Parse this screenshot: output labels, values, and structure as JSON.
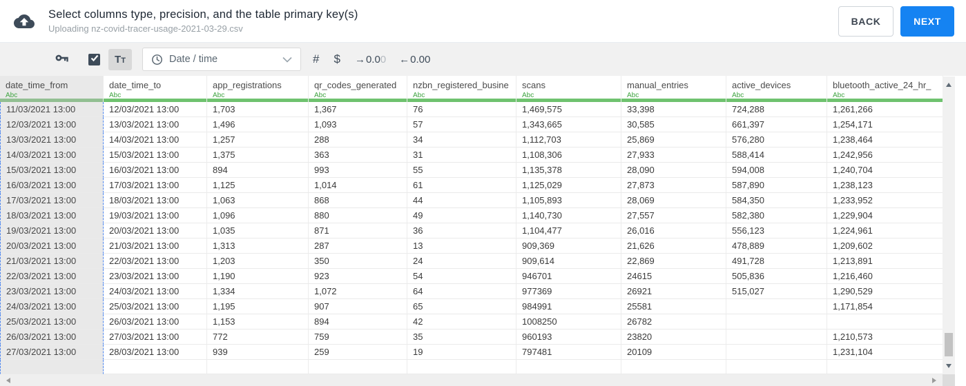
{
  "header": {
    "title": "Select columns type, precision, and the table primary key(s)",
    "subtitle": "Uploading nz-covid-tracer-usage-2021-03-29.csv",
    "back_label": "BACK",
    "next_label": "NEXT"
  },
  "toolbar": {
    "checkbox_checked": true,
    "text_type_label": "Tt",
    "type_dropdown_value": "Date / time",
    "number_label": "#",
    "currency_label": "$",
    "decrease_decimals": {
      "arrow": "→",
      "main": "0.0",
      "faded": "0"
    },
    "increase_decimals": {
      "arrow": "←",
      "main": "0.00",
      "faded": ""
    }
  },
  "icons": {
    "upload": "cloud-upload-icon",
    "primary_key": "key-icon",
    "datetime": "clock-icon",
    "dropdown": "chevron-down-icon"
  },
  "colors": {
    "accent_blue": "#1583f2",
    "type_green": "#3fa441",
    "type_bar_green": "#6fc26f",
    "selection_dash_blue": "#4d86f0",
    "icon_slate": "#3e4b59",
    "toolbar_gray": "#f1f1f1",
    "selected_column_gray": "#e9e9e9"
  },
  "table": {
    "columns": [
      {
        "name": "date_time_from",
        "type_label": "Abc",
        "selected": true
      },
      {
        "name": "date_time_to",
        "type_label": "Abc",
        "selected": false
      },
      {
        "name": "app_registrations",
        "type_label": "Abc",
        "selected": false
      },
      {
        "name": "qr_codes_generated",
        "type_label": "Abc",
        "selected": false
      },
      {
        "name": "nzbn_registered_busine",
        "type_label": "Abc",
        "selected": false
      },
      {
        "name": "scans",
        "type_label": "Abc",
        "selected": false
      },
      {
        "name": "manual_entries",
        "type_label": "Abc",
        "selected": false
      },
      {
        "name": "active_devices",
        "type_label": "Abc",
        "selected": false
      },
      {
        "name": "bluetooth_active_24_hr_",
        "type_label": "Abc",
        "selected": false
      }
    ],
    "rows": [
      [
        "11/03/2021 13:00",
        "12/03/2021 13:00",
        "1,703",
        "1,367",
        "76",
        "1,469,575",
        "33,398",
        "724,288",
        "1,261,266"
      ],
      [
        "12/03/2021 13:00",
        "13/03/2021 13:00",
        "1,496",
        "1,093",
        "57",
        "1,343,665",
        "30,585",
        "661,397",
        "1,254,171"
      ],
      [
        "13/03/2021 13:00",
        "14/03/2021 13:00",
        "1,257",
        "288",
        "34",
        "1,112,703",
        "25,869",
        "576,280",
        "1,238,464"
      ],
      [
        "14/03/2021 13:00",
        "15/03/2021 13:00",
        "1,375",
        "363",
        "31",
        "1,108,306",
        "27,933",
        "588,414",
        "1,242,956"
      ],
      [
        "15/03/2021 13:00",
        "16/03/2021 13:00",
        "894",
        "993",
        "55",
        "1,135,378",
        "28,090",
        "594,008",
        "1,240,704"
      ],
      [
        "16/03/2021 13:00",
        "17/03/2021 13:00",
        "1,125",
        "1,014",
        "61",
        "1,125,029",
        "27,873",
        "587,890",
        "1,238,123"
      ],
      [
        "17/03/2021 13:00",
        "18/03/2021 13:00",
        "1,063",
        "868",
        "44",
        "1,105,893",
        "28,069",
        "584,350",
        "1,233,952"
      ],
      [
        "18/03/2021 13:00",
        "19/03/2021 13:00",
        "1,096",
        "880",
        "49",
        "1,140,730",
        "27,557",
        "582,380",
        "1,229,904"
      ],
      [
        "19/03/2021 13:00",
        "20/03/2021 13:00",
        "1,035",
        "871",
        "36",
        "1,104,477",
        "26,016",
        "556,123",
        "1,224,961"
      ],
      [
        "20/03/2021 13:00",
        "21/03/2021 13:00",
        "1,313",
        "287",
        "13",
        "909,369",
        "21,626",
        "478,889",
        "1,209,602"
      ],
      [
        "21/03/2021 13:00",
        "22/03/2021 13:00",
        "1,203",
        "350",
        "24",
        "909,614",
        "22,869",
        "491,728",
        "1,213,891"
      ],
      [
        "22/03/2021 13:00",
        "23/03/2021 13:00",
        "1,190",
        "923",
        "54",
        "946701",
        "24615",
        "505,836",
        "1,216,460"
      ],
      [
        "23/03/2021 13:00",
        "24/03/2021 13:00",
        "1,334",
        "1,072",
        "64",
        "977369",
        "26921",
        "515,027",
        "1,290,529"
      ],
      [
        "24/03/2021 13:00",
        "25/03/2021 13:00",
        "1,195",
        "907",
        "65",
        "984991",
        "25581",
        "",
        "1,171,854"
      ],
      [
        "25/03/2021 13:00",
        "26/03/2021 13:00",
        "1,153",
        "894",
        "42",
        "1008250",
        "26782",
        "",
        ""
      ],
      [
        "26/03/2021 13:00",
        "27/03/2021 13:00",
        "772",
        "759",
        "35",
        "960193",
        "23820",
        "",
        "1,210,573"
      ],
      [
        "27/03/2021 13:00",
        "28/03/2021 13:00",
        "939",
        "259",
        "19",
        "797481",
        "20109",
        "",
        "1,231,104"
      ]
    ]
  }
}
